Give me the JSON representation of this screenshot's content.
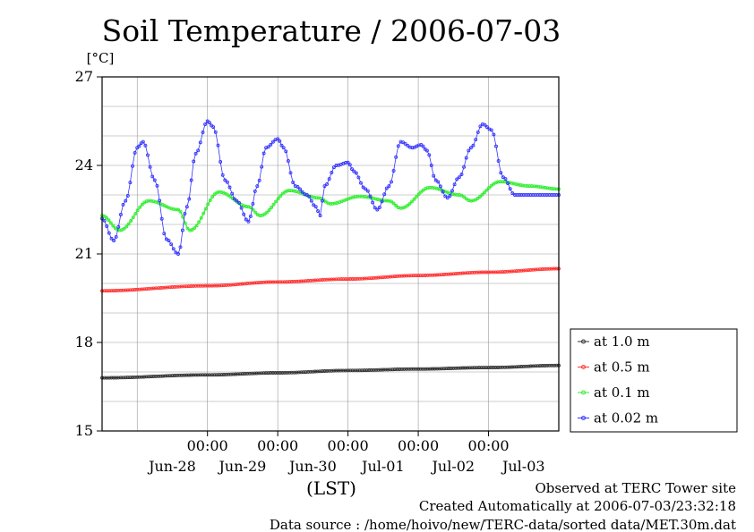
{
  "chart_data": {
    "type": "line",
    "title": "Soil Temperature / 2006-07-03",
    "ylabel": "[°C]",
    "xlabel": "(LST)",
    "ylim": [
      15,
      27
    ],
    "yticks": [
      "15",
      "18",
      "21",
      "24",
      "27"
    ],
    "xlim": [
      "2006-06-27 12:00",
      "2006-07-03 24:00"
    ],
    "xticks_time": [
      "00:00",
      "00:00",
      "00:00",
      "00:00",
      "00:00"
    ],
    "xticks_date": [
      "Jun-28",
      "Jun-29",
      "Jun-30",
      "Jul-01",
      "Jul-02",
      "Jul-03"
    ],
    "grid": true,
    "legend_position": "right",
    "series": [
      {
        "name": "at 1.0 m",
        "color": "#333333",
        "x": [
          "2006-06-27 12:00",
          "2006-06-29 00:00",
          "2006-06-30 00:00",
          "2006-07-01 00:00",
          "2006-07-02 00:00",
          "2006-07-03 00:00",
          "2006-07-03 24:00"
        ],
        "values": [
          16.8,
          16.9,
          16.97,
          17.05,
          17.1,
          17.15,
          17.22
        ]
      },
      {
        "name": "at 0.5 m",
        "color": "#ff3333",
        "x": [
          "2006-06-27 12:00",
          "2006-06-29 00:00",
          "2006-06-30 00:00",
          "2006-07-01 00:00",
          "2006-07-02 00:00",
          "2006-07-03 00:00",
          "2006-07-03 24:00"
        ],
        "values": [
          19.75,
          19.92,
          20.05,
          20.15,
          20.27,
          20.38,
          20.5
        ]
      },
      {
        "name": "at 0.1 m",
        "color": "#33ee33",
        "x": [
          "2006-06-27 12:00",
          "2006-06-27 18:00",
          "2006-06-28 04:00",
          "2006-06-28 14:00",
          "2006-06-28 18:00",
          "2006-06-29 04:00",
          "2006-06-29 14:00",
          "2006-06-29 18:00",
          "2006-06-30 04:00",
          "2006-06-30 14:00",
          "2006-06-30 18:00",
          "2006-07-01 04:00",
          "2006-07-01 14:00",
          "2006-07-01 18:00",
          "2006-07-02 04:00",
          "2006-07-02 14:00",
          "2006-07-02 18:00",
          "2006-07-03 04:00",
          "2006-07-03 14:00",
          "2006-07-03 24:00"
        ],
        "values": [
          22.3,
          21.8,
          22.8,
          22.5,
          21.8,
          23.1,
          22.6,
          22.3,
          23.15,
          22.9,
          22.7,
          22.95,
          22.8,
          22.55,
          23.25,
          23.0,
          22.8,
          23.45,
          23.3,
          23.2
        ]
      },
      {
        "name": "at 0.02 m",
        "color": "#3333ff",
        "x": [
          "2006-06-27 12:00",
          "2006-06-27 16:00",
          "2006-06-27 20:00",
          "2006-06-28 00:00",
          "2006-06-28 02:00",
          "2006-06-28 06:00",
          "2006-06-28 10:00",
          "2006-06-28 14:00",
          "2006-06-28 17:00",
          "2006-06-28 20:00",
          "2006-06-29 00:00",
          "2006-06-29 02:00",
          "2006-06-29 06:00",
          "2006-06-29 10:00",
          "2006-06-29 14:00",
          "2006-06-29 17:00",
          "2006-06-29 20:00",
          "2006-06-30 00:00",
          "2006-06-30 02:00",
          "2006-06-30 06:00",
          "2006-06-30 10:00",
          "2006-06-30 13:00",
          "2006-06-30 14:30",
          "2006-06-30 16:00",
          "2006-06-30 20:00",
          "2006-07-01 00:00",
          "2006-07-01 02:00",
          "2006-07-01 06:00",
          "2006-07-01 10:00",
          "2006-07-01 14:00",
          "2006-07-01 18:00",
          "2006-07-01 22:00",
          "2006-07-02 01:00",
          "2006-07-02 03:00",
          "2006-07-02 06:00",
          "2006-07-02 10:00",
          "2006-07-02 14:00",
          "2006-07-02 18:00",
          "2006-07-02 22:00",
          "2006-07-03 01:00",
          "2006-07-03 05:00",
          "2006-07-03 09:00",
          "2006-07-03 12:00",
          "2006-07-03 16:00",
          "2006-07-03 20:00",
          "2006-07-03 24:00"
        ],
        "values": [
          22.2,
          21.45,
          22.8,
          24.6,
          24.8,
          23.5,
          21.5,
          21.0,
          22.6,
          24.4,
          25.5,
          25.3,
          23.5,
          22.8,
          22.1,
          23.3,
          24.6,
          24.9,
          24.6,
          23.3,
          23.0,
          22.6,
          22.3,
          23.3,
          24.0,
          24.1,
          23.8,
          23.2,
          22.5,
          23.3,
          24.8,
          24.6,
          24.7,
          24.5,
          23.5,
          22.9,
          23.6,
          24.6,
          25.4,
          25.2,
          23.6,
          23.0,
          23.0,
          23.0,
          23.0,
          23.0
        ]
      }
    ]
  },
  "footer": {
    "line1": "Observed at TERC Tower site",
    "line2": "Created Automatically at 2006-07-03/23:32:18",
    "line3": "Data source : /home/hoivo/new/TERC-data/sorted  data/MET.30m.dat"
  }
}
